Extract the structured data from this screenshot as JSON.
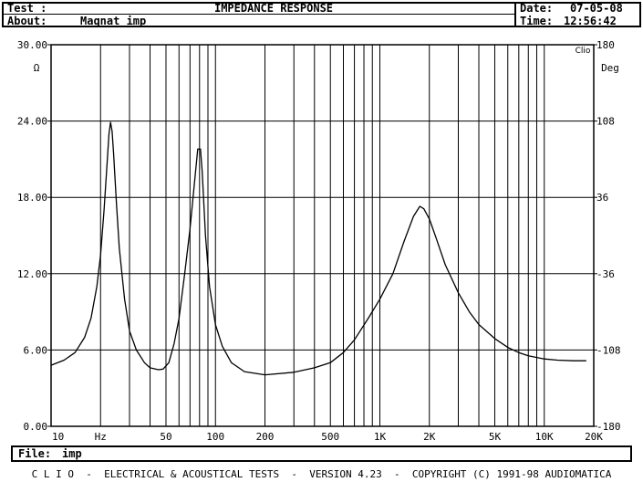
{
  "header": {
    "test_label": "Test :",
    "about_label": "About:",
    "about_value": "Magnat imp",
    "title": "IMPEDANCE RESPONSE",
    "date_label": "Date:",
    "date_value": "07-05-08",
    "time_label": "Time:",
    "time_value": "12:56:42"
  },
  "file_bar": {
    "label": "File:",
    "value": "imp"
  },
  "footer": {
    "text": "C L I O  -  ELECTRICAL & ACOUSTICAL TESTS  -  VERSION 4.23  -  COPYRIGHT (C) 1991-98 AUDIOMATICA"
  },
  "chart_data": {
    "type": "line",
    "title": "IMPEDANCE RESPONSE",
    "xlabel": "Hz",
    "ylabel": "Ω",
    "y2label": "Deg",
    "corner_label": "Clio",
    "xscale": "log",
    "xlim": [
      10,
      20000
    ],
    "ylim": [
      0,
      30
    ],
    "y2lim": [
      -180,
      180
    ],
    "grid": true,
    "x_ticks": [
      {
        "value": 10,
        "label": "10"
      },
      {
        "value": 20,
        "label": "Hz"
      },
      {
        "value": 50,
        "label": "50"
      },
      {
        "value": 100,
        "label": "100"
      },
      {
        "value": 200,
        "label": "200"
      },
      {
        "value": 500,
        "label": "500"
      },
      {
        "value": 1000,
        "label": "1K"
      },
      {
        "value": 2000,
        "label": "2K"
      },
      {
        "value": 5000,
        "label": "5K"
      },
      {
        "value": 10000,
        "label": "10K"
      },
      {
        "value": 20000,
        "label": "20K"
      }
    ],
    "y_ticks": [
      {
        "value": 0,
        "label": "0.00"
      },
      {
        "value": 6,
        "label": "6.00"
      },
      {
        "value": 12,
        "label": "12.00"
      },
      {
        "value": 18,
        "label": "18.00"
      },
      {
        "value": 24,
        "label": "24.00"
      },
      {
        "value": 30,
        "label": "30.00"
      }
    ],
    "y2_ticks": [
      {
        "value": 180,
        "label": "180"
      },
      {
        "value": 108,
        "label": "108"
      },
      {
        "value": 36,
        "label": "36"
      },
      {
        "value": -36,
        "label": "-36"
      },
      {
        "value": -108,
        "label": "-108"
      },
      {
        "value": -180,
        "label": "-180"
      }
    ],
    "series": [
      {
        "values": [
          [
            10,
            4.8
          ],
          [
            12,
            5.2
          ],
          [
            14,
            5.8
          ],
          [
            16,
            7.0
          ],
          [
            17.5,
            8.5
          ],
          [
            19,
            11.0
          ],
          [
            20,
            13.5
          ],
          [
            21,
            17.0
          ],
          [
            22,
            21.0
          ],
          [
            22.5,
            23.0
          ],
          [
            23,
            23.9
          ],
          [
            23.5,
            23.2
          ],
          [
            24,
            21.5
          ],
          [
            25,
            17.5
          ],
          [
            26,
            14.0
          ],
          [
            28,
            10.0
          ],
          [
            30,
            7.5
          ],
          [
            33,
            6.0
          ],
          [
            37,
            5.0
          ],
          [
            40,
            4.6
          ],
          [
            45,
            4.45
          ],
          [
            48,
            4.5
          ],
          [
            52,
            5.0
          ],
          [
            56,
            6.5
          ],
          [
            60,
            8.5
          ],
          [
            65,
            12.0
          ],
          [
            70,
            15.5
          ],
          [
            75,
            19.5
          ],
          [
            78,
            21.8
          ],
          [
            81,
            21.8
          ],
          [
            83,
            20.0
          ],
          [
            87,
            15.0
          ],
          [
            92,
            11.0
          ],
          [
            100,
            8.0
          ],
          [
            110,
            6.3
          ],
          [
            125,
            5.0
          ],
          [
            150,
            4.3
          ],
          [
            200,
            4.05
          ],
          [
            300,
            4.25
          ],
          [
            400,
            4.6
          ],
          [
            500,
            5.0
          ],
          [
            600,
            5.8
          ],
          [
            700,
            6.8
          ],
          [
            850,
            8.5
          ],
          [
            1000,
            10.0
          ],
          [
            1200,
            12.0
          ],
          [
            1400,
            14.5
          ],
          [
            1600,
            16.5
          ],
          [
            1750,
            17.3
          ],
          [
            1850,
            17.1
          ],
          [
            2000,
            16.3
          ],
          [
            2200,
            14.8
          ],
          [
            2500,
            12.7
          ],
          [
            3000,
            10.5
          ],
          [
            3500,
            9.0
          ],
          [
            4000,
            8.0
          ],
          [
            5000,
            6.9
          ],
          [
            6000,
            6.2
          ],
          [
            7000,
            5.8
          ],
          [
            8000,
            5.55
          ],
          [
            10000,
            5.3
          ],
          [
            12000,
            5.2
          ],
          [
            15000,
            5.15
          ],
          [
            18000,
            5.15
          ]
        ]
      }
    ]
  }
}
